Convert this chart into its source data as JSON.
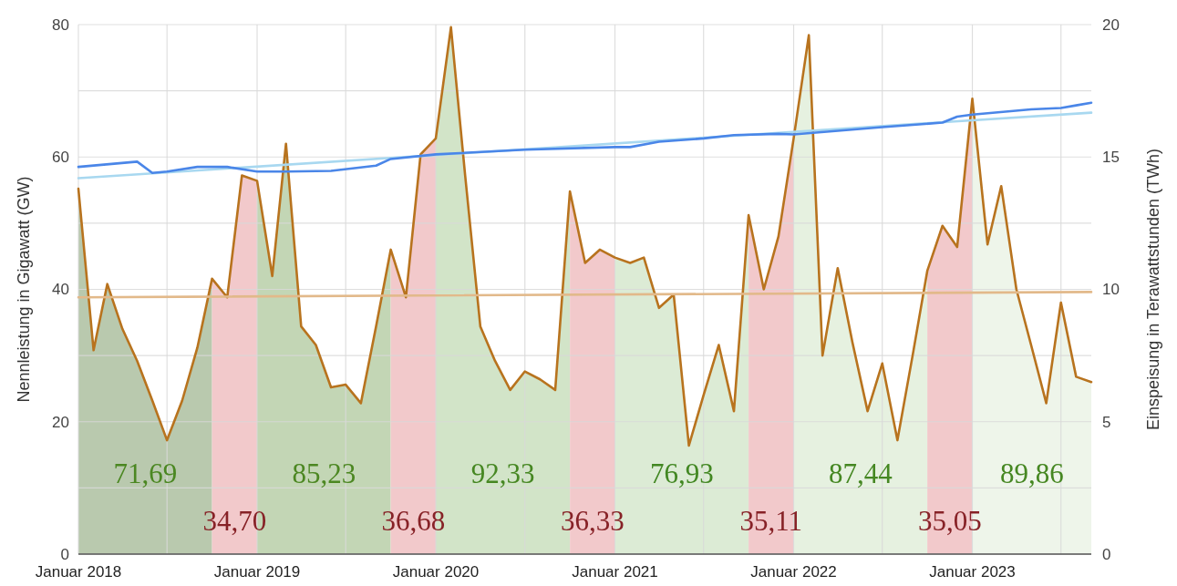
{
  "chart_data": {
    "type": "line",
    "ylabel": "Nennleistung in Gigawatt (GW)",
    "y2label": "Einspeisung in Terawattstunden (TWh)",
    "xlim": [
      "2018-01",
      "2023-09"
    ],
    "xticks": [
      {
        "value": "2018-01",
        "label": "Januar 2018"
      },
      {
        "value": "2018-07",
        "label": null
      },
      {
        "value": "2019-01",
        "label": "Januar 2019"
      },
      {
        "value": "2019-07",
        "label": null
      },
      {
        "value": "2020-01",
        "label": "Januar 2020"
      },
      {
        "value": "2020-07",
        "label": null
      },
      {
        "value": "2021-01",
        "label": "Januar 2021"
      },
      {
        "value": "2021-07",
        "label": null
      },
      {
        "value": "2022-01",
        "label": "Januar 2022"
      },
      {
        "value": "2022-07",
        "label": null
      },
      {
        "value": "2023-01",
        "label": "Januar 2023"
      },
      {
        "value": "2023-07",
        "label": null
      }
    ],
    "ylim": [
      0,
      80
    ],
    "yticks": [
      0,
      {
        "value": 10,
        "label": null
      },
      20,
      {
        "value": 30,
        "label": null
      },
      40,
      {
        "value": 50,
        "label": null
      },
      60,
      {
        "value": 70,
        "label": null
      },
      80
    ],
    "y2lim": [
      0,
      20
    ],
    "y2ticks": [
      0,
      5,
      10,
      15,
      20
    ],
    "grid": true,
    "marker": "none",
    "line_style": "solid",
    "bands": [
      {
        "axis": "x",
        "from": "2018-01",
        "to": "2018-10",
        "label": "71,69",
        "color": "#b9c9ae"
      },
      {
        "axis": "x",
        "from": "2018-10",
        "to": "2019-01",
        "label": "34,70",
        "color": "#f2c9cb"
      },
      {
        "axis": "x",
        "from": "2019-01",
        "to": "2019-10",
        "label": "85,23",
        "color": "#c3d6b5"
      },
      {
        "axis": "x",
        "from": "2019-10",
        "to": "2020-01",
        "label": "36,68",
        "color": "#f2c9cb"
      },
      {
        "axis": "x",
        "from": "2020-01",
        "to": "2020-10",
        "label": "92,33",
        "color": "#d2e4c8"
      },
      {
        "axis": "x",
        "from": "2020-10",
        "to": "2021-01",
        "label": "36,33",
        "color": "#f2c9cb"
      },
      {
        "axis": "x",
        "from": "2021-01",
        "to": "2021-10",
        "label": "76,93",
        "color": "#dcebd5"
      },
      {
        "axis": "x",
        "from": "2021-10",
        "to": "2022-01",
        "label": "35,11",
        "color": "#f2c9cb"
      },
      {
        "axis": "x",
        "from": "2022-01",
        "to": "2022-10",
        "label": "87,44",
        "color": "#e6f1e0"
      },
      {
        "axis": "x",
        "from": "2022-10",
        "to": "2023-01",
        "label": "35,05",
        "color": "#f2c9cb"
      },
      {
        "axis": "x",
        "from": "2023-01",
        "to": "2023-09",
        "label": "89,86",
        "color": "#eef5ea"
      }
    ],
    "series": [
      {
        "axis": "y2",
        "color": "#b8731e",
        "x": [
          "2018-01",
          "2018-02",
          "2018-03",
          "2018-04",
          "2018-05",
          "2018-06",
          "2018-07",
          "2018-08",
          "2018-09",
          "2018-10",
          "2018-11",
          "2018-12",
          "2019-01",
          "2019-02",
          "2019-03",
          "2019-04",
          "2019-05",
          "2019-06",
          "2019-07",
          "2019-08",
          "2019-09",
          "2019-10",
          "2019-11",
          "2019-12",
          "2020-01",
          "2020-02",
          "2020-03",
          "2020-04",
          "2020-05",
          "2020-06",
          "2020-07",
          "2020-08",
          "2020-09",
          "2020-10",
          "2020-11",
          "2020-12",
          "2021-01",
          "2021-02",
          "2021-03",
          "2021-04",
          "2021-05",
          "2021-06",
          "2021-07",
          "2021-08",
          "2021-09",
          "2021-10",
          "2021-11",
          "2021-12",
          "2022-01",
          "2022-02",
          "2022-03",
          "2022-04",
          "2022-05",
          "2022-06",
          "2022-07",
          "2022-08",
          "2022-09",
          "2022-10",
          "2022-11",
          "2022-12",
          "2023-01",
          "2023-02",
          "2023-03",
          "2023-04",
          "2023-05",
          "2023-06",
          "2023-07",
          "2023-08",
          "2023-09"
        ],
        "values": [
          13.8,
          7.7,
          10.2,
          8.5,
          7.3,
          5.8,
          4.3,
          5.8,
          7.8,
          10.4,
          9.7,
          14.3,
          14.1,
          10.5,
          15.5,
          8.6,
          7.9,
          6.3,
          6.4,
          5.7,
          8.6,
          11.5,
          9.7,
          15.1,
          15.7,
          19.9,
          14.3,
          8.6,
          7.3,
          6.2,
          6.9,
          6.6,
          6.2,
          13.7,
          11.0,
          11.5,
          11.2,
          11.0,
          11.2,
          9.3,
          9.8,
          4.1,
          6.0,
          7.9,
          5.4,
          12.8,
          10.0,
          12.0,
          15.7,
          19.6,
          7.5,
          10.8,
          8.0,
          5.4,
          7.2,
          4.3,
          7.5,
          10.7,
          12.4,
          11.6,
          17.2,
          11.7,
          13.9,
          10.0,
          7.9,
          5.7,
          9.5,
          6.7,
          6.5
        ]
      },
      {
        "axis": "y2",
        "color": "#e2b98a",
        "x": [
          "2018-01",
          "2023-09"
        ],
        "values": [
          9.7,
          9.9
        ]
      },
      {
        "axis": "y",
        "color": "#a8d8f0",
        "x": [
          "2018-01",
          "2023-09"
        ],
        "values": [
          56.8,
          66.7
        ]
      },
      {
        "axis": "y",
        "color": "#4a86e8",
        "x": [
          "2018-01",
          "2018-05",
          "2018-06",
          "2018-07",
          "2018-09",
          "2018-11",
          "2019-01",
          "2019-03",
          "2019-06",
          "2019-09",
          "2019-10",
          "2020-01",
          "2020-07",
          "2021-01",
          "2021-02",
          "2021-04",
          "2021-07",
          "2021-09",
          "2021-12",
          "2022-01",
          "2022-07",
          "2022-11",
          "2022-12",
          "2023-01",
          "2023-05",
          "2023-07",
          "2023-08",
          "2023-09"
        ],
        "values": [
          58.5,
          59.3,
          57.6,
          57.8,
          58.5,
          58.5,
          57.8,
          57.8,
          57.9,
          58.7,
          59.7,
          60.4,
          61.1,
          61.5,
          61.5,
          62.3,
          62.8,
          63.3,
          63.5,
          63.4,
          64.5,
          65.2,
          66.1,
          66.4,
          67.2,
          67.4,
          67.8,
          68.2
        ]
      }
    ]
  }
}
